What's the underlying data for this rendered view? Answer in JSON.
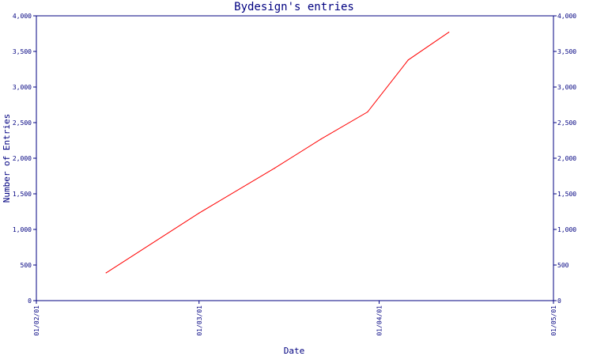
{
  "chart_data": {
    "type": "line",
    "title": "Bydesign's entries",
    "xlabel": "Date",
    "ylabel": "Number of Entries",
    "x_tick_labels": [
      "01/02/01",
      "01/03/01",
      "01/04/01",
      "01/05/01"
    ],
    "x_tick_dates": [
      "2001-02-01",
      "2001-03-01",
      "2001-04-01",
      "2001-05-01"
    ],
    "y_tick_labels": [
      "0",
      "500",
      "1,000",
      "1,500",
      "2,000",
      "2,500",
      "3,000",
      "3,500",
      "4,000"
    ],
    "y_ticks": [
      0,
      500,
      1000,
      1500,
      2000,
      2500,
      3000,
      3500,
      4000
    ],
    "ylim": [
      0,
      4000
    ],
    "xlim": [
      "2001-02-01",
      "2001-05-01"
    ],
    "grid": false,
    "right_axis_mirror": true,
    "series": [
      {
        "color": "#ff0000",
        "x": [
          "2001-02-13",
          "2001-03-01",
          "2001-03-14",
          "2001-03-22",
          "2001-03-30",
          "2001-04-06",
          "2001-04-13"
        ],
        "values": [
          390,
          1230,
          1860,
          2270,
          2650,
          3380,
          3770
        ]
      }
    ]
  },
  "colors": {
    "axis": "#000080",
    "series": "#ff0000"
  }
}
